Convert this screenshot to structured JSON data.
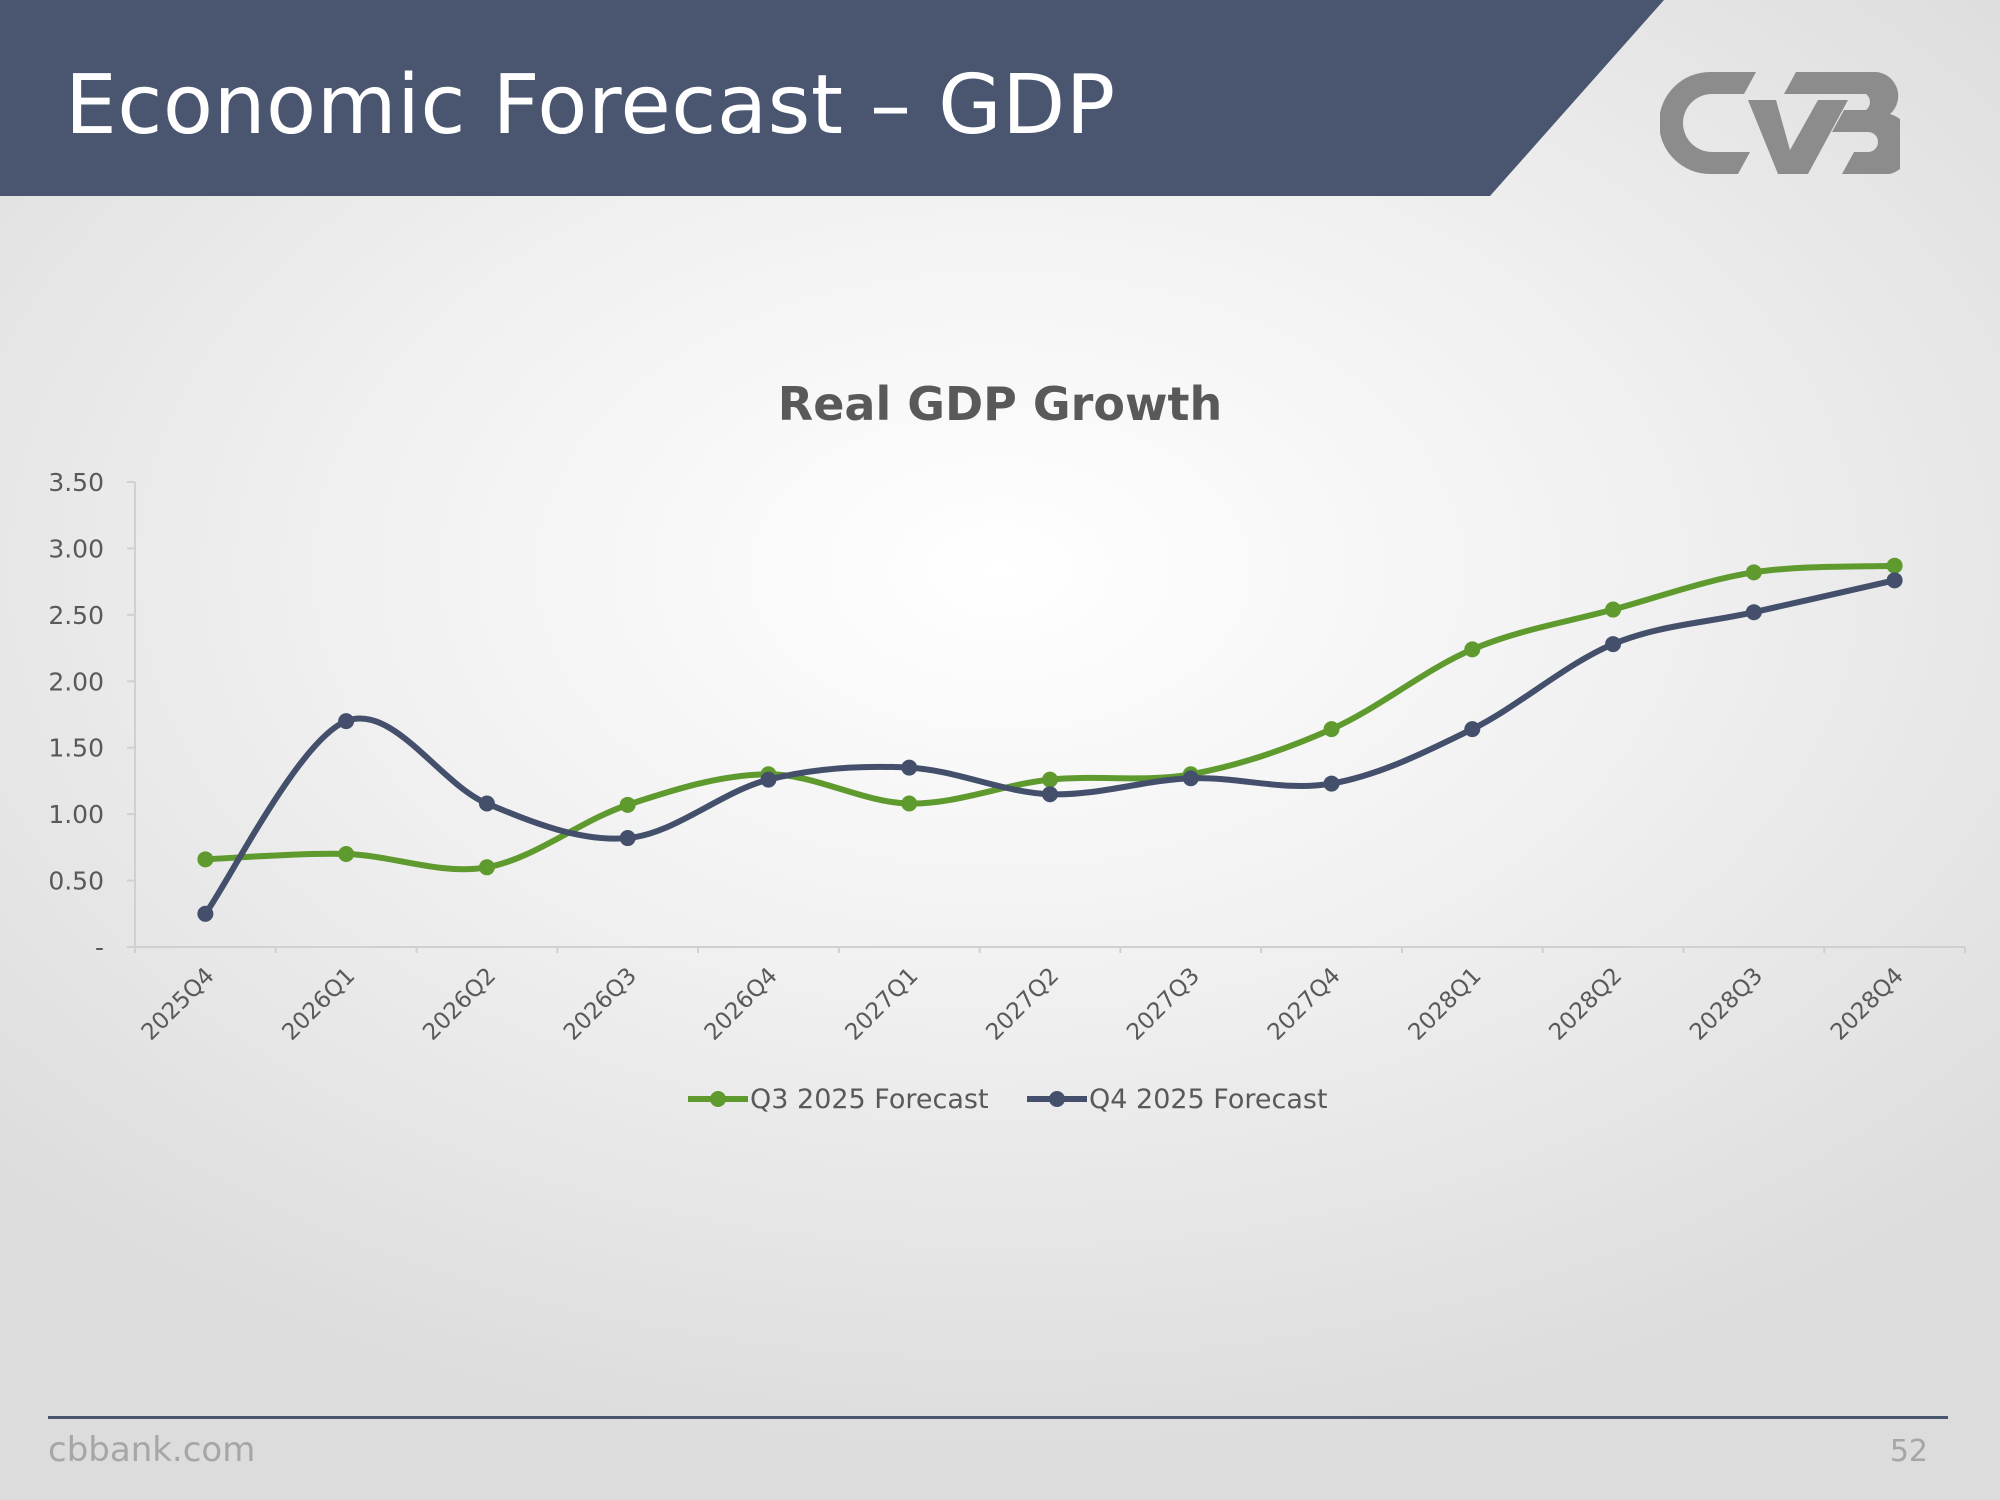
{
  "slide": {
    "title": "Economic Forecast – GDP",
    "footer_url": "cbbank.com",
    "page_number": "52",
    "banner_color": "#4a5570"
  },
  "logo": {
    "name": "cvb-logo",
    "color": "#8c8c8c"
  },
  "chart_data": {
    "type": "line",
    "title": "Real GDP Growth",
    "xlabel": "",
    "ylabel": "",
    "categories": [
      "2025Q4",
      "2026Q1",
      "2026Q2",
      "2026Q3",
      "2026Q4",
      "2027Q1",
      "2027Q2",
      "2027Q3",
      "2027Q4",
      "2028Q1",
      "2028Q2",
      "2028Q3",
      "2028Q4"
    ],
    "y_tick_labels": [
      "-",
      "0.50",
      "1.00",
      "1.50",
      "2.00",
      "2.50",
      "3.00",
      "3.50"
    ],
    "ylim": [
      0,
      3.5
    ],
    "smooth": true,
    "grid": false,
    "legend_position": "bottom",
    "series": [
      {
        "name": "Q3 2025 Forecast",
        "color": "#5e9a2e",
        "values": [
          0.66,
          0.7,
          0.6,
          1.07,
          1.3,
          1.08,
          1.26,
          1.3,
          1.64,
          2.24,
          2.54,
          2.82,
          2.87
        ]
      },
      {
        "name": "Q4 2025 Forecast",
        "color": "#44506b",
        "values": [
          0.25,
          1.7,
          1.08,
          0.82,
          1.26,
          1.35,
          1.15,
          1.27,
          1.23,
          1.64,
          2.28,
          2.52,
          2.76
        ]
      }
    ]
  }
}
